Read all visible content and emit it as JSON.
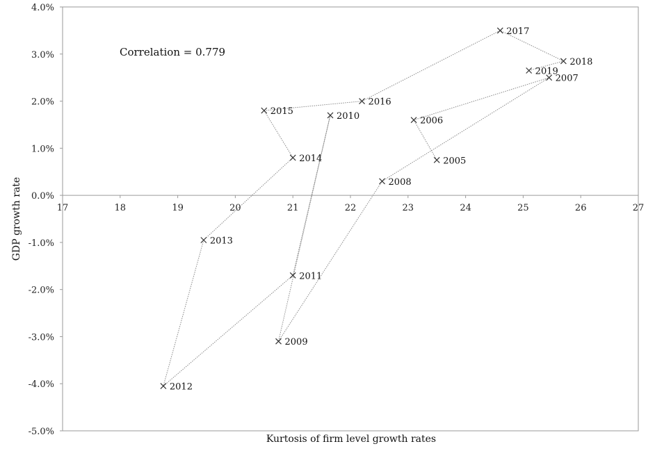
{
  "chart_data": {
    "type": "scatter",
    "title": "",
    "xlabel": "Kurtosis of firm level growth rates",
    "ylabel": "GDP growth rate",
    "xlim": [
      17,
      27
    ],
    "ylim": [
      -5.0,
      4.0
    ],
    "x_ticks": [
      17,
      18,
      19,
      20,
      21,
      22,
      23,
      24,
      25,
      26,
      27
    ],
    "y_ticks": [
      4.0,
      3.0,
      2.0,
      1.0,
      0.0,
      -1.0,
      -2.0,
      -3.0,
      -4.0,
      -5.0
    ],
    "y_tick_labels": [
      "4.0%",
      "3.0%",
      "2.0%",
      "1.0%",
      "0.0%",
      "-1.0%",
      "-2.0%",
      "-3.0%",
      "-4.0%",
      "-5.0%"
    ],
    "annotation": "Correlation = 0.779",
    "grid": false,
    "connected_in_year_order": true,
    "points": [
      {
        "label": "2005",
        "x": 23.5,
        "y": 0.75
      },
      {
        "label": "2006",
        "x": 23.1,
        "y": 1.6
      },
      {
        "label": "2007",
        "x": 25.45,
        "y": 2.5
      },
      {
        "label": "2008",
        "x": 22.55,
        "y": 0.3
      },
      {
        "label": "2009",
        "x": 20.75,
        "y": -3.1
      },
      {
        "label": "2010",
        "x": 21.65,
        "y": 1.7
      },
      {
        "label": "2011",
        "x": 21.0,
        "y": -1.7
      },
      {
        "label": "2012",
        "x": 18.75,
        "y": -4.05
      },
      {
        "label": "2013",
        "x": 19.45,
        "y": -0.95
      },
      {
        "label": "2014",
        "x": 21.0,
        "y": 0.8
      },
      {
        "label": "2015",
        "x": 20.5,
        "y": 1.8
      },
      {
        "label": "2016",
        "x": 22.2,
        "y": 2.0
      },
      {
        "label": "2017",
        "x": 24.6,
        "y": 3.5
      },
      {
        "label": "2018",
        "x": 25.7,
        "y": 2.85
      },
      {
        "label": "2019",
        "x": 25.1,
        "y": 2.65
      }
    ]
  }
}
